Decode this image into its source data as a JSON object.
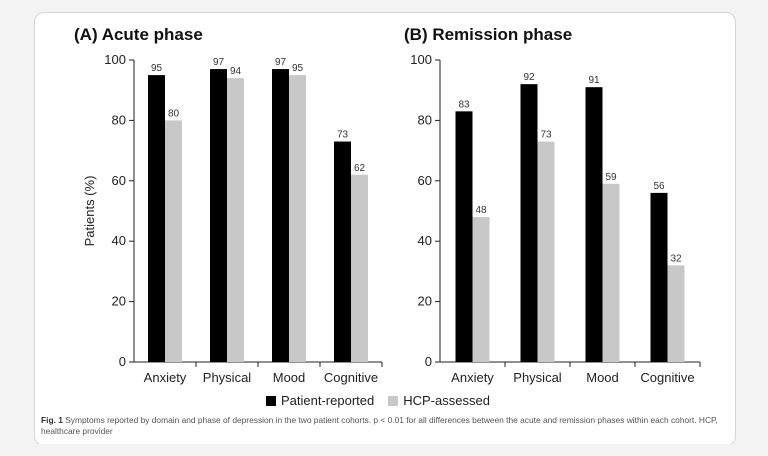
{
  "figure": {
    "caption_label": "Fig. 1",
    "caption_text": "Symptoms reported by domain and phase of depression in the two patient cohorts. p < 0.01 for all differences between the acute and remission phases within each cohort. HCP, healthcare provider"
  },
  "colors": {
    "patient_reported": "#000000",
    "hcp_assessed": "#c8c8c8"
  },
  "chart_data": [
    {
      "type": "bar",
      "title": "(A) Acute phase",
      "ylabel": "Patients (%)",
      "ylim": [
        0,
        100
      ],
      "yticks": [
        0,
        20,
        40,
        60,
        80,
        100
      ],
      "categories": [
        "Anxiety",
        "Physical",
        "Mood",
        "Cognitive"
      ],
      "series": [
        {
          "name": "Patient-reported",
          "values": [
            95,
            97,
            97,
            73
          ]
        },
        {
          "name": "HCP-assessed",
          "values": [
            80,
            94,
            95,
            62
          ]
        }
      ]
    },
    {
      "type": "bar",
      "title": "(B) Remission phase",
      "ylabel": "",
      "ylim": [
        0,
        100
      ],
      "yticks": [
        0,
        20,
        40,
        60,
        80,
        100
      ],
      "categories": [
        "Anxiety",
        "Physical",
        "Mood",
        "Cognitive"
      ],
      "series": [
        {
          "name": "Patient-reported",
          "values": [
            83,
            92,
            91,
            56
          ]
        },
        {
          "name": "HCP-assessed",
          "values": [
            48,
            73,
            59,
            32
          ]
        }
      ]
    }
  ],
  "legend": [
    {
      "label": "Patient-reported"
    },
    {
      "label": "HCP-assessed"
    }
  ]
}
